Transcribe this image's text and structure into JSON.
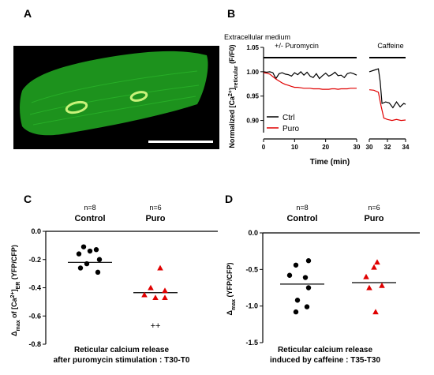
{
  "panels": {
    "A": {
      "label": "A",
      "image": "green fluorescent elongated cardiomyocyte with two nuclei and scale bar on black background",
      "colors": {
        "background": "#000000",
        "cell": "#1f9a1f",
        "nucleus": "#c9f27a",
        "scale_bar": "#ffffff"
      }
    },
    "B": {
      "label": "B"
    },
    "C": {
      "label": "C"
    },
    "D": {
      "label": "D"
    }
  },
  "chart_data": [
    {
      "panel": "B",
      "type": "line",
      "ylabel_prefix": "Normalized [Ca",
      "ylabel_sup": "2+",
      "ylabel_close": "]",
      "ylabel_sub": "reticular",
      "ylabel_suffix": " (F/F0)",
      "xlabel": "Time (min)",
      "ylim": [
        0.875,
        1.05
      ],
      "yticks": [
        "0.90",
        "0.95",
        "1.00",
        "1.05"
      ],
      "ytick_values": [
        0.9,
        0.95,
        1.0,
        1.05
      ],
      "xticks_left": [
        "0",
        "10",
        "20",
        "30"
      ],
      "xtick_left_values": [
        0,
        10,
        20,
        30
      ],
      "xticks_right": [
        "30",
        "32",
        "34"
      ],
      "xtick_right_values": [
        30,
        32,
        34
      ],
      "annotations": {
        "left_line1": "Extracellular medium",
        "left_line2": "+/-  Puromycin",
        "right": "Caffeine"
      },
      "legend": {
        "position": "bottom-left",
        "entries": [
          "Ctrl",
          "Puro"
        ]
      },
      "series": [
        {
          "name": "Ctrl",
          "color": "#000000",
          "segment1": {
            "x": [
              0,
              1,
              2,
              3,
              4,
              5,
              6,
              7,
              8,
              9,
              10,
              11,
              12,
              13,
              14,
              15,
              16,
              17,
              18,
              19,
              20,
              21,
              22,
              23,
              24,
              25,
              26,
              27,
              28,
              29,
              30
            ],
            "y": [
              1.0,
              0.999,
              1.0,
              0.998,
              0.986,
              0.996,
              0.998,
              0.995,
              0.994,
              0.991,
              0.998,
              0.994,
              1.0,
              0.993,
              0.999,
              0.991,
              0.988,
              0.996,
              0.986,
              0.992,
              0.997,
              0.991,
              0.994,
              0.999,
              0.992,
              0.993,
              0.988,
              0.996,
              0.998,
              0.996,
              0.993
            ]
          },
          "segment2": {
            "x": [
              30.0,
              30.5,
              31.0,
              31.2,
              31.4,
              31.8,
              32.2,
              32.6,
              33.0,
              33.4,
              33.8,
              34.0
            ],
            "y": [
              1.0,
              1.003,
              1.006,
              0.98,
              0.935,
              0.938,
              0.936,
              0.926,
              0.938,
              0.928,
              0.935,
              0.933
            ]
          }
        },
        {
          "name": "Puro",
          "color": "#e00000",
          "segment1": {
            "x": [
              0,
              1,
              2,
              3,
              4,
              5,
              6,
              7,
              8,
              9,
              10,
              11,
              12,
              13,
              14,
              15,
              16,
              17,
              18,
              19,
              20,
              21,
              22,
              23,
              24,
              25,
              26,
              27,
              28,
              29,
              30
            ],
            "y": [
              0.998,
              0.997,
              0.995,
              0.99,
              0.985,
              0.981,
              0.977,
              0.974,
              0.972,
              0.97,
              0.968,
              0.968,
              0.967,
              0.966,
              0.966,
              0.966,
              0.965,
              0.965,
              0.965,
              0.964,
              0.964,
              0.964,
              0.965,
              0.965,
              0.964,
              0.965,
              0.965,
              0.965,
              0.966,
              0.966,
              0.966
            ]
          },
          "segment2": {
            "x": [
              30.0,
              30.5,
              31.0,
              31.3,
              31.6,
              32.0,
              32.5,
              33.0,
              33.5,
              34.0
            ],
            "y": [
              0.963,
              0.962,
              0.958,
              0.93,
              0.905,
              0.902,
              0.9,
              0.902,
              0.9,
              0.901
            ]
          }
        }
      ]
    },
    {
      "panel": "C",
      "type": "scatter",
      "ylabel_prefix": "Δ",
      "ylabel_sub1": "max",
      "ylabel_mid": " of [Ca",
      "ylabel_sup": "2+",
      "ylabel_close": "]",
      "ylabel_sub2": "ER",
      "ylabel_suffix": " (YFP/CFP)",
      "ylim": [
        -0.8,
        0.0
      ],
      "yticks": [
        "0.0",
        "-0.2",
        "-0.4",
        "-0.6",
        "-0.8"
      ],
      "ytick_values": [
        0.0,
        -0.2,
        -0.4,
        -0.6,
        -0.8
      ],
      "groups": [
        {
          "name": "Control",
          "n_label": "n=8",
          "marker": "circle",
          "color": "#000000",
          "mean": -0.22,
          "points": [
            -0.11,
            -0.13,
            -0.14,
            -0.16,
            -0.2,
            -0.23,
            -0.26,
            -0.29
          ],
          "offsets": [
            -8,
            8,
            0,
            -14,
            12,
            -4,
            -12,
            10
          ]
        },
        {
          "name": "Puro",
          "n_label": "n=6",
          "marker": "triangle",
          "color": "#e00000",
          "mean": -0.435,
          "points": [
            -0.26,
            -0.4,
            -0.42,
            -0.45,
            -0.47,
            -0.47
          ],
          "offsets": [
            6,
            -6,
            12,
            -14,
            0,
            12
          ]
        }
      ],
      "significance": {
        "group": "Puro",
        "text": "++",
        "y": -0.665
      },
      "caption": [
        "Reticular calcium release",
        "after puromycin stimulation : T30-T0"
      ]
    },
    {
      "panel": "D",
      "type": "scatter",
      "ylabel_prefix": "Δ",
      "ylabel_sub1": "max",
      "ylabel_suffix": " (YFP/CFP)",
      "ylim": [
        -1.5,
        0.0
      ],
      "yticks": [
        "0.0",
        "-0.5",
        "-1.0",
        "-1.5"
      ],
      "ytick_values": [
        0.0,
        -0.5,
        -1.0,
        -1.5
      ],
      "groups": [
        {
          "name": "Control",
          "n_label": "n=8",
          "marker": "circle",
          "color": "#000000",
          "mean": -0.7,
          "points": [
            -0.38,
            -0.44,
            -0.58,
            -0.61,
            -0.75,
            -0.92,
            -1.01,
            -1.08
          ],
          "offsets": [
            8,
            -8,
            -16,
            4,
            8,
            -6,
            6,
            -8
          ]
        },
        {
          "name": "Puro",
          "n_label": "n=6",
          "marker": "triangle",
          "color": "#e00000",
          "mean": -0.68,
          "points": [
            -0.4,
            -0.47,
            -0.6,
            -0.72,
            -0.75,
            -1.08
          ],
          "offsets": [
            4,
            0,
            -10,
            10,
            -6,
            2
          ]
        }
      ],
      "caption": [
        "Reticular calcium release",
        "induced by caffeine : T35-T30"
      ]
    }
  ]
}
